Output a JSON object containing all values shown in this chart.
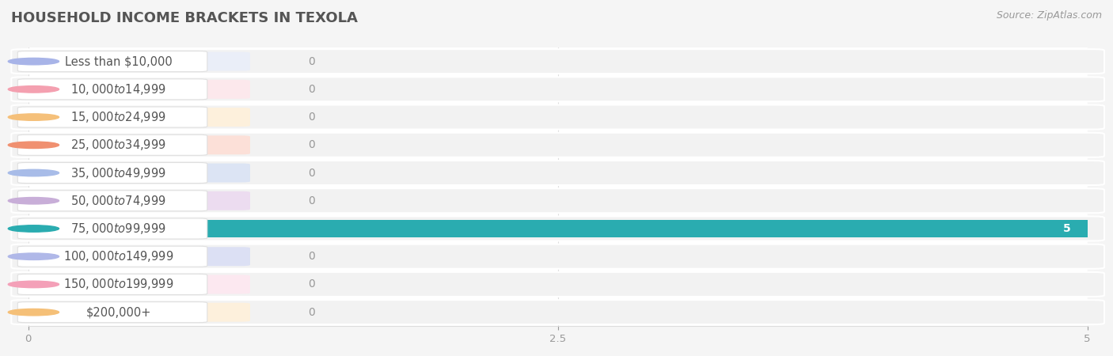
{
  "title": "HOUSEHOLD INCOME BRACKETS IN TEXOLA",
  "source": "Source: ZipAtlas.com",
  "categories": [
    "Less than $10,000",
    "$10,000 to $14,999",
    "$15,000 to $24,999",
    "$25,000 to $34,999",
    "$35,000 to $49,999",
    "$50,000 to $74,999",
    "$75,000 to $99,999",
    "$100,000 to $149,999",
    "$150,000 to $199,999",
    "$200,000+"
  ],
  "values": [
    0,
    0,
    0,
    0,
    0,
    0,
    5,
    0,
    0,
    0
  ],
  "bar_colors": [
    "#a8b4e8",
    "#f4a0b0",
    "#f5c07a",
    "#f09070",
    "#a8bce8",
    "#c8aed8",
    "#2aacb0",
    "#b0b8e8",
    "#f4a0b8",
    "#f5c078"
  ],
  "label_bg_colors": [
    "#eaeef8",
    "#fce8ec",
    "#fdf0dc",
    "#fce0d8",
    "#dce4f4",
    "#ecdcf0",
    "#cce8ea",
    "#dce0f4",
    "#fce8f0",
    "#fdf0dc"
  ],
  "row_bg_color": "#f2f2f2",
  "xlim": [
    0,
    5
  ],
  "xticks": [
    0,
    2.5,
    5
  ],
  "bar_height": 0.68,
  "background_color": "#f5f5f5",
  "plot_bg_color": "#ffffff",
  "title_fontsize": 13,
  "label_fontsize": 10.5,
  "value_fontsize": 10,
  "source_fontsize": 9,
  "grid_color": "#dddddd"
}
